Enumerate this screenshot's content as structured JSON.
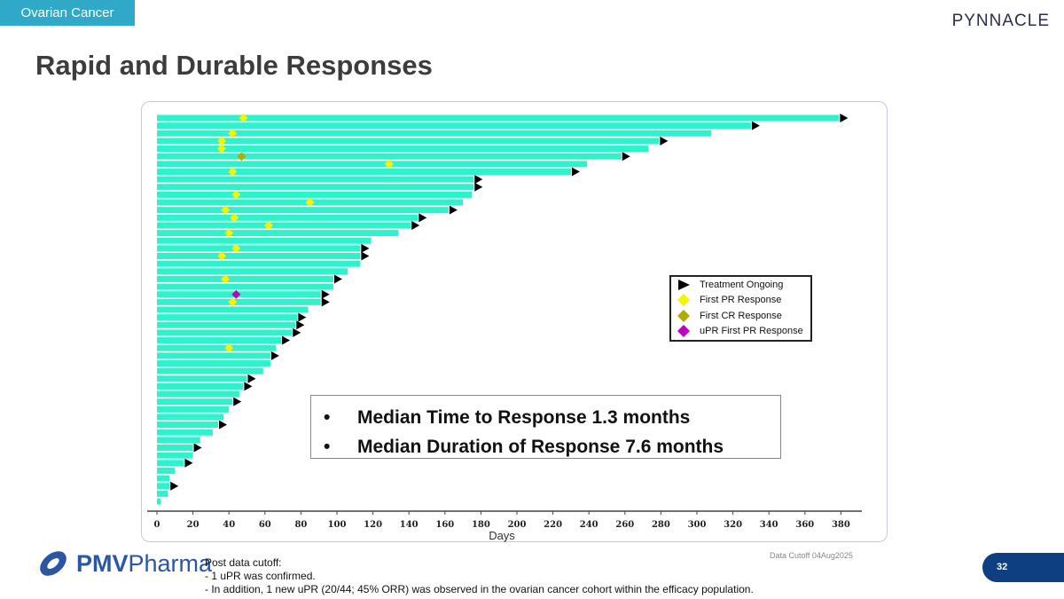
{
  "header": {
    "section_tag": "Ovarian Cancer",
    "brand": "PYNNACLE",
    "title": "Rapid and Durable Responses"
  },
  "colors": {
    "bar": "#2ef2cb",
    "pr": "#f5f500",
    "cr": "#b0ad00",
    "upr": "#c000c0",
    "ongoing": "#000000",
    "tag": "#30a9c9",
    "page_badge": "#0e3f80"
  },
  "chart_data": {
    "type": "swimmer",
    "xlabel": "Days",
    "xlim": [
      0,
      390
    ],
    "xticks": [
      0,
      20,
      40,
      60,
      80,
      100,
      120,
      140,
      160,
      180,
      200,
      220,
      240,
      260,
      280,
      300,
      320,
      340,
      360,
      380
    ],
    "legend": [
      {
        "key": "ongoing",
        "label": "Treatment Ongoing",
        "icon": "triangle-right"
      },
      {
        "key": "pr",
        "label": "First PR Response",
        "icon": "diamond"
      },
      {
        "key": "cr",
        "label": "First CR Response",
        "icon": "diamond"
      },
      {
        "key": "upr",
        "label": "uPR First PR Response",
        "icon": "diamond"
      }
    ],
    "legend_position": "right-middle",
    "patients": [
      {
        "days": 379,
        "ongoing": true,
        "pr": 48
      },
      {
        "days": 330,
        "ongoing": true
      },
      {
        "days": 308,
        "ongoing": false,
        "pr": 42
      },
      {
        "days": 279,
        "ongoing": true,
        "pr": 36
      },
      {
        "days": 273,
        "ongoing": false,
        "pr": 36
      },
      {
        "days": 258,
        "ongoing": true,
        "cr": 47
      },
      {
        "days": 239,
        "ongoing": false,
        "pr": 129
      },
      {
        "days": 230,
        "ongoing": true,
        "pr": 42
      },
      {
        "days": 176,
        "ongoing": true
      },
      {
        "days": 176,
        "ongoing": true
      },
      {
        "days": 175,
        "ongoing": false,
        "pr": 44
      },
      {
        "days": 170,
        "ongoing": false,
        "pr": 85
      },
      {
        "days": 162,
        "ongoing": true,
        "pr": 38
      },
      {
        "days": 145,
        "ongoing": true,
        "pr": 43
      },
      {
        "days": 141,
        "ongoing": true,
        "pr": 62
      },
      {
        "days": 134,
        "ongoing": false,
        "pr": 40
      },
      {
        "days": 119,
        "ongoing": false
      },
      {
        "days": 113,
        "ongoing": true,
        "pr": 44
      },
      {
        "days": 113,
        "ongoing": true,
        "pr": 36
      },
      {
        "days": 113,
        "ongoing": false
      },
      {
        "days": 106,
        "ongoing": false
      },
      {
        "days": 98,
        "ongoing": true,
        "pr": 38
      },
      {
        "days": 98,
        "ongoing": false
      },
      {
        "days": 91,
        "ongoing": true,
        "upr": 44
      },
      {
        "days": 91,
        "ongoing": true,
        "pr": 42
      },
      {
        "days": 84,
        "ongoing": false
      },
      {
        "days": 78,
        "ongoing": true
      },
      {
        "days": 77,
        "ongoing": true
      },
      {
        "days": 75,
        "ongoing": true
      },
      {
        "days": 69,
        "ongoing": true
      },
      {
        "days": 66,
        "ongoing": false,
        "pr": 40
      },
      {
        "days": 63,
        "ongoing": true
      },
      {
        "days": 63,
        "ongoing": false
      },
      {
        "days": 59,
        "ongoing": false
      },
      {
        "days": 50,
        "ongoing": true
      },
      {
        "days": 48,
        "ongoing": true
      },
      {
        "days": 46,
        "ongoing": false
      },
      {
        "days": 42,
        "ongoing": true
      },
      {
        "days": 40,
        "ongoing": false
      },
      {
        "days": 37,
        "ongoing": false
      },
      {
        "days": 34,
        "ongoing": true
      },
      {
        "days": 31,
        "ongoing": false
      },
      {
        "days": 24,
        "ongoing": false
      },
      {
        "days": 20,
        "ongoing": true
      },
      {
        "days": 20,
        "ongoing": false
      },
      {
        "days": 15,
        "ongoing": true
      },
      {
        "days": 10,
        "ongoing": false
      },
      {
        "days": 7,
        "ongoing": false
      },
      {
        "days": 7,
        "ongoing": true
      },
      {
        "days": 6,
        "ongoing": false
      },
      {
        "days": 2,
        "ongoing": false
      }
    ]
  },
  "median_box": {
    "items": [
      "Median Time to Response 1.3 months",
      "Median Duration of Response 7.6 months"
    ],
    "bullet": "•"
  },
  "footer": {
    "cutoff": "Data Cutoff 04Aug2025",
    "notes": [
      "Post data cutoff:",
      "- 1 uPR was confirmed.",
      "- In addition, 1 new uPR (20/44; 45% ORR) was observed in the ovarian cancer cohort within the efficacy population."
    ],
    "logo_bold": "PMV",
    "logo_rest": "Pharma",
    "page_number": "32"
  }
}
